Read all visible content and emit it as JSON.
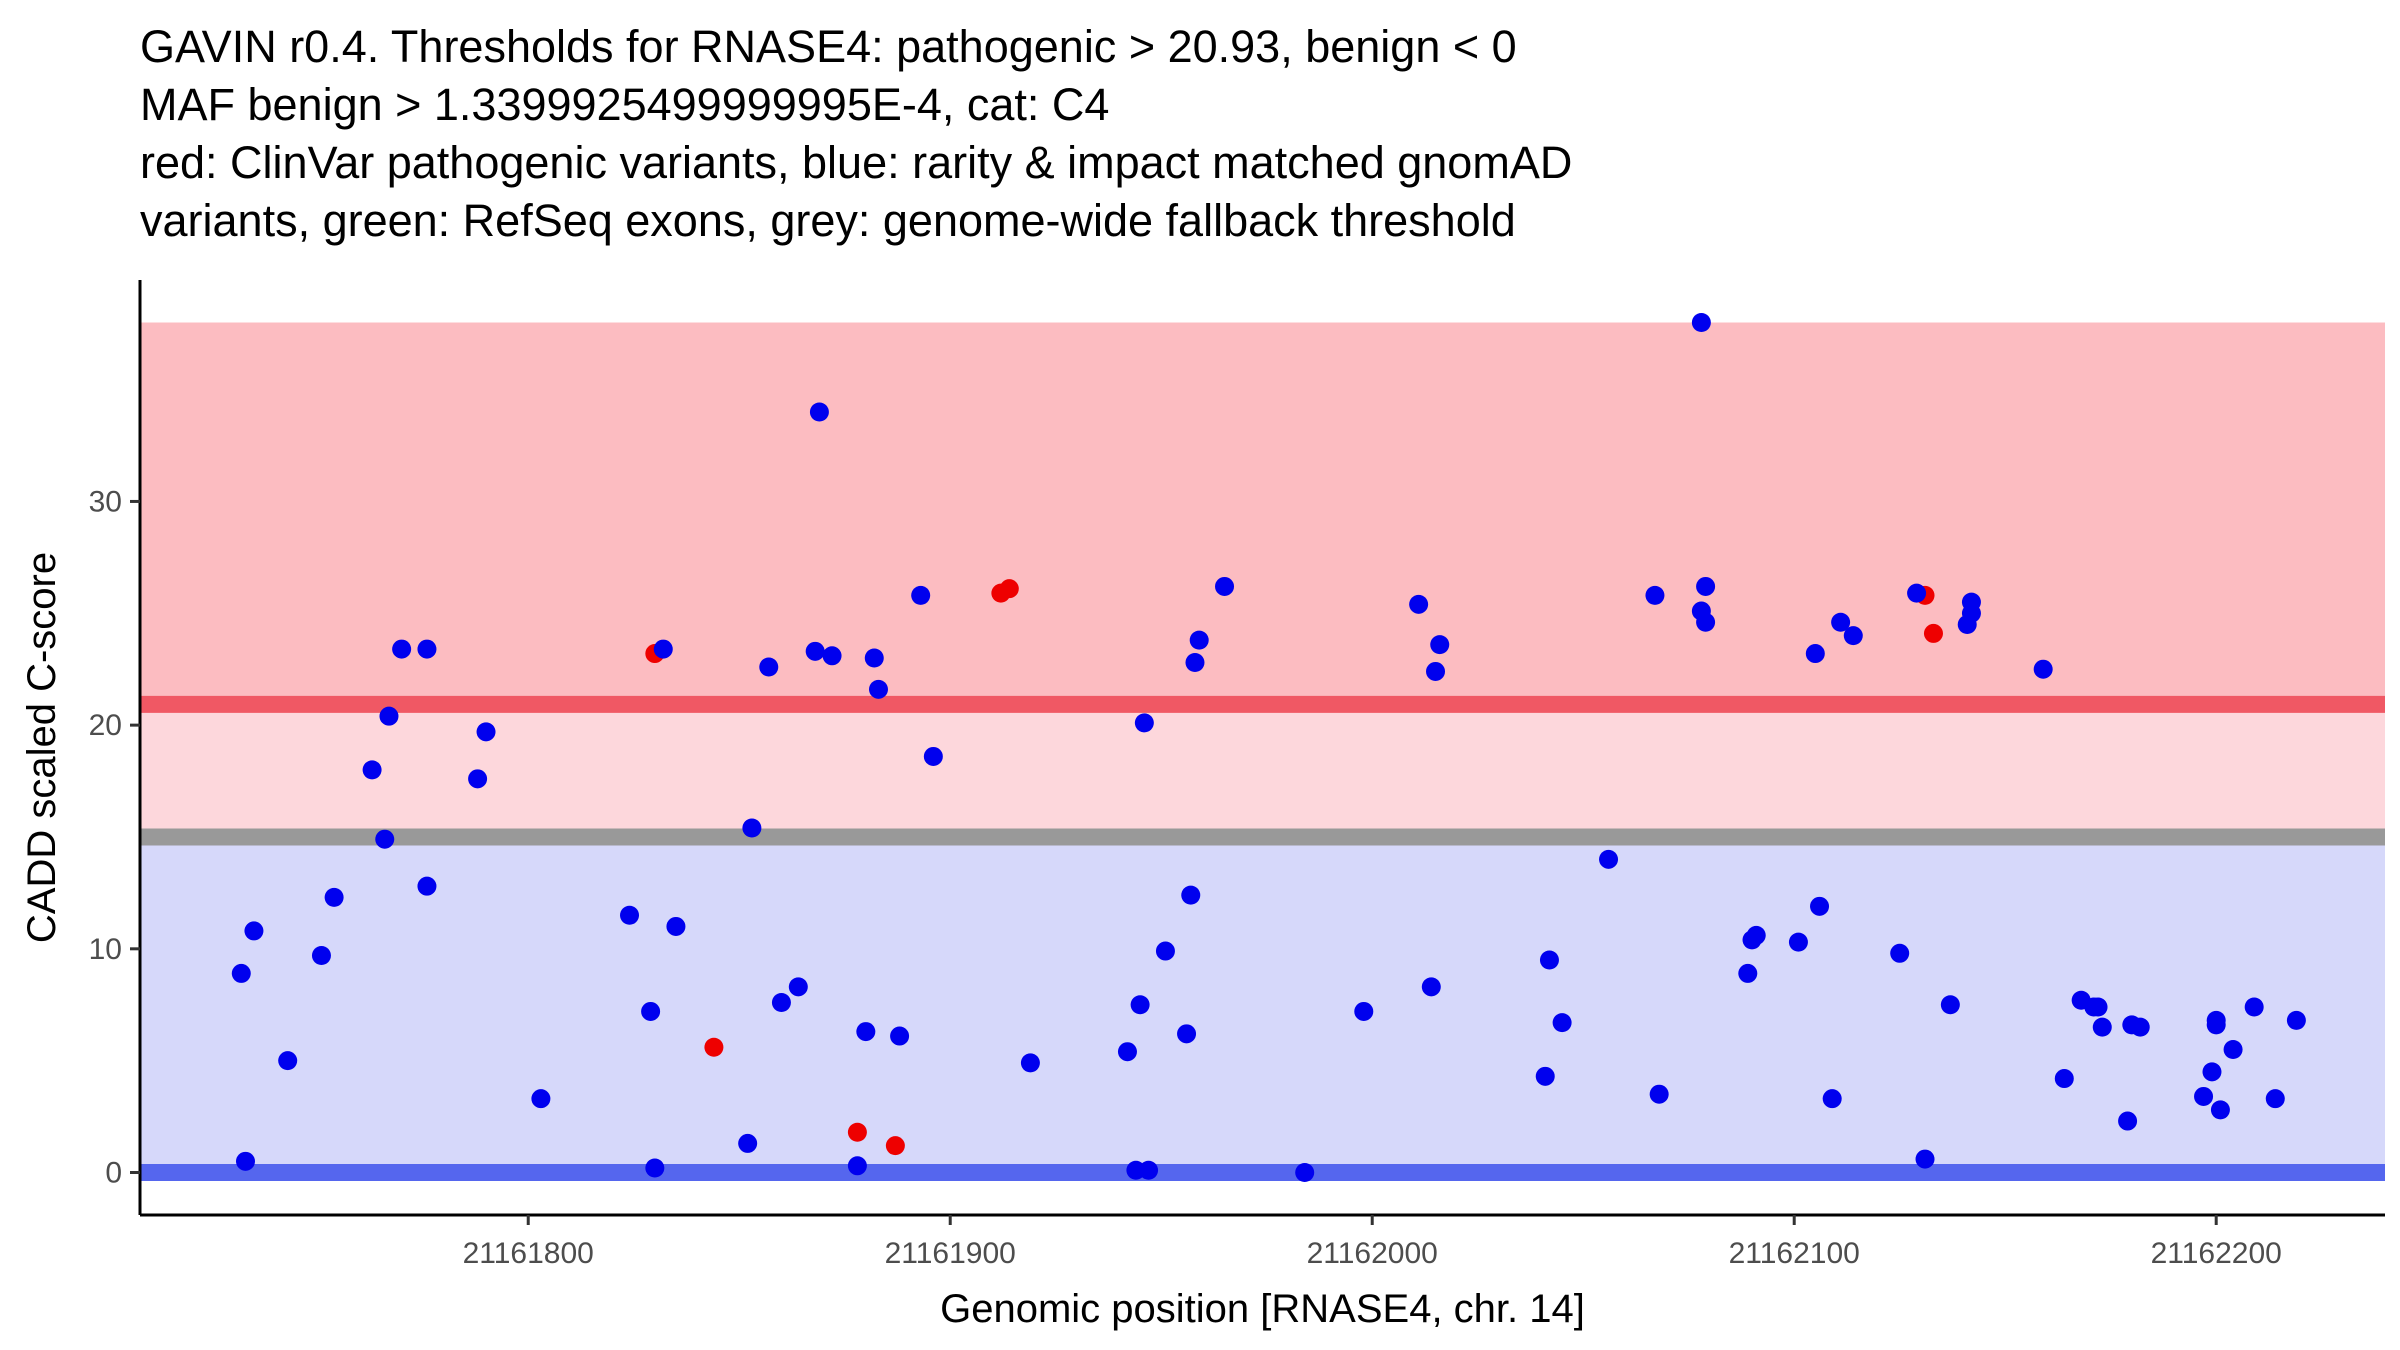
{
  "title_lines": [
    "GAVIN r0.4. Thresholds for RNASE4: pathogenic > 20.93, benign < 0",
    "MAF benign > 1.3399925499999995E-4, cat: C4",
    "red: ClinVar pathogenic variants, blue: rarity & impact matched gnomAD",
    "variants, green: RefSeq exons, grey: genome-wide fallback threshold"
  ],
  "chart_data": {
    "type": "scatter",
    "title": "GAVIN r0.4. Thresholds for RNASE4: pathogenic > 20.93, benign < 0",
    "xlabel": "Genomic position [RNASE4, chr. 14]",
    "ylabel": "CADD scaled C-score",
    "xlim": [
      21161708,
      21162240
    ],
    "ylim": [
      -1.9,
      39.9
    ],
    "x_ticks": [
      21161800,
      21161900,
      21162000,
      21162100,
      21162200
    ],
    "x_tick_labels": [
      "21161800",
      "21161900",
      "21162000",
      "21162100",
      "21162200"
    ],
    "y_ticks": [
      0,
      10,
      20,
      30
    ],
    "y_tick_labels": [
      "0",
      "10",
      "20",
      "30"
    ],
    "grid": false,
    "regions": [
      {
        "name": "pathogenic zone",
        "y0": 20.93,
        "y1": 38.0,
        "color": "#fcbcc1"
      },
      {
        "name": "grey-to-pathogenic zone",
        "y0": 15.0,
        "y1": 20.93,
        "color": "#fdd7dc"
      },
      {
        "name": "benign zone",
        "y0": 0.0,
        "y1": 15.0,
        "color": "#d6d8fa"
      }
    ],
    "threshold_lines": [
      {
        "name": "pathogenic threshold",
        "y": 20.93,
        "color": "#f05864"
      },
      {
        "name": "genome-wide fallback threshold",
        "y": 15.0,
        "color": "#999999"
      },
      {
        "name": "benign threshold",
        "y": 0.0,
        "color": "#5566ee"
      }
    ],
    "series": [
      {
        "name": "ClinVar pathogenic variants",
        "color": "#ee0000",
        "points": [
          [
            21161830,
            23.2
          ],
          [
            21161844,
            5.6
          ],
          [
            21161878,
            1.8
          ],
          [
            21161887,
            1.2
          ],
          [
            21161912,
            25.9
          ],
          [
            21161914,
            26.1
          ],
          [
            21162131,
            25.8
          ],
          [
            21162133,
            24.1
          ]
        ]
      },
      {
        "name": "rarity & impact matched gnomAD variants",
        "color": "#0000ee",
        "points": [
          [
            21161732,
            8.9
          ],
          [
            21161733,
            0.5
          ],
          [
            21161735,
            10.8
          ],
          [
            21161743,
            5.0
          ],
          [
            21161751,
            9.7
          ],
          [
            21161754,
            12.3
          ],
          [
            21161763,
            18.0
          ],
          [
            21161766,
            14.9
          ],
          [
            21161767,
            20.4
          ],
          [
            21161770,
            23.4
          ],
          [
            21161776,
            23.4
          ],
          [
            21161776,
            12.8
          ],
          [
            21161788,
            17.6
          ],
          [
            21161790,
            19.7
          ],
          [
            21161803,
            3.3
          ],
          [
            21161824,
            11.5
          ],
          [
            21161829,
            7.2
          ],
          [
            21161830,
            0.2
          ],
          [
            21161832,
            23.4
          ],
          [
            21161835,
            11.0
          ],
          [
            21161852,
            1.3
          ],
          [
            21161853,
            15.4
          ],
          [
            21161857,
            22.6
          ],
          [
            21161860,
            7.6
          ],
          [
            21161864,
            8.3
          ],
          [
            21161868,
            23.3
          ],
          [
            21161869,
            34.0
          ],
          [
            21161872,
            23.1
          ],
          [
            21161878,
            0.3
          ],
          [
            21161880,
            6.3
          ],
          [
            21161882,
            23.0
          ],
          [
            21161883,
            21.6
          ],
          [
            21161888,
            6.1
          ],
          [
            21161893,
            25.8
          ],
          [
            21161896,
            18.6
          ],
          [
            21161919,
            4.9
          ],
          [
            21161942,
            5.4
          ],
          [
            21161944,
            0.1
          ],
          [
            21161945,
            7.5
          ],
          [
            21161946,
            20.1
          ],
          [
            21161947,
            0.1
          ],
          [
            21161951,
            9.9
          ],
          [
            21161956,
            6.2
          ],
          [
            21161957,
            12.4
          ],
          [
            21161958,
            22.8
          ],
          [
            21161959,
            23.8
          ],
          [
            21161965,
            26.2
          ],
          [
            21161984,
            0.0
          ],
          [
            21161998,
            7.2
          ],
          [
            21162011,
            25.4
          ],
          [
            21162014,
            8.3
          ],
          [
            21162015,
            22.4
          ],
          [
            21162016,
            23.6
          ],
          [
            21162041,
            4.3
          ],
          [
            21162042,
            9.5
          ],
          [
            21162045,
            6.7
          ],
          [
            21162056,
            14.0
          ],
          [
            21162067,
            25.8
          ],
          [
            21162068,
            3.5
          ],
          [
            21162078,
            25.1
          ],
          [
            21162078,
            38.0
          ],
          [
            21162079,
            24.6
          ],
          [
            21162079,
            26.2
          ],
          [
            21162089,
            8.9
          ],
          [
            21162090,
            10.4
          ],
          [
            21162091,
            10.6
          ],
          [
            21162101,
            10.3
          ],
          [
            21162105,
            23.2
          ],
          [
            21162106,
            11.9
          ],
          [
            21162109,
            3.3
          ],
          [
            21162111,
            24.6
          ],
          [
            21162114,
            24.0
          ],
          [
            21162125,
            9.8
          ],
          [
            21162129,
            25.9
          ],
          [
            21162131,
            0.6
          ],
          [
            21162137,
            7.5
          ],
          [
            21162141,
            24.5
          ],
          [
            21162142,
            25.0
          ],
          [
            21162142,
            25.5
          ],
          [
            21162159,
            22.5
          ],
          [
            21162164,
            4.2
          ],
          [
            21162168,
            7.7
          ],
          [
            21162171,
            7.4
          ],
          [
            21162172,
            7.4
          ],
          [
            21162173,
            6.5
          ],
          [
            21162179,
            2.3
          ],
          [
            21162180,
            6.6
          ],
          [
            21162182,
            6.5
          ],
          [
            21162197,
            3.4
          ],
          [
            21162199,
            4.5
          ],
          [
            21162200,
            6.6
          ],
          [
            21162200,
            6.8
          ],
          [
            21162201,
            2.8
          ],
          [
            21162204,
            5.5
          ],
          [
            21162209,
            7.4
          ],
          [
            21162214,
            3.3
          ],
          [
            21162219,
            6.8
          ]
        ]
      }
    ]
  }
}
